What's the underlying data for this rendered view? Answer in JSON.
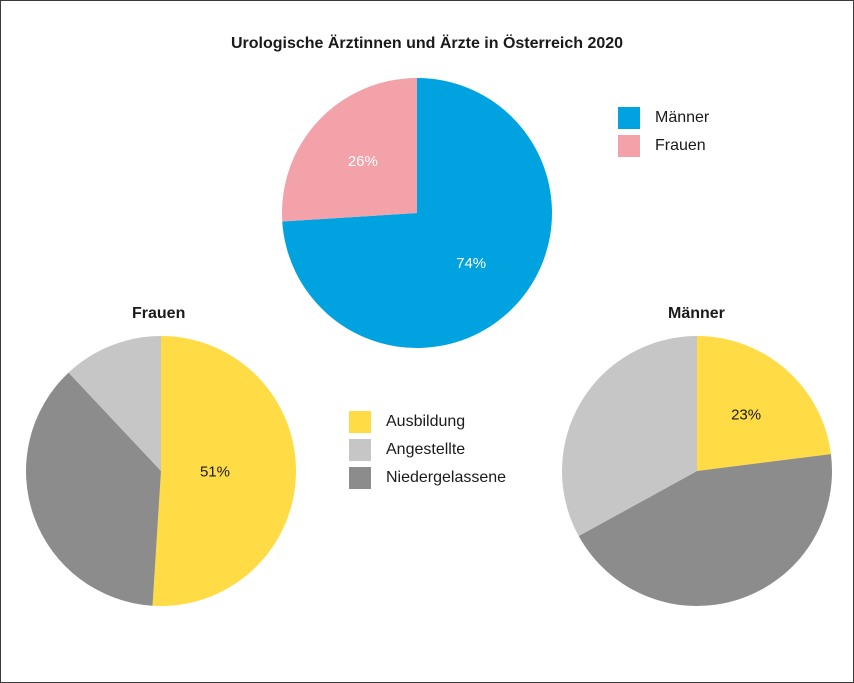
{
  "colors": {
    "maenner": "#00a3e0",
    "frauen": "#f2a2a8",
    "ausbildung": "#ffdc45",
    "angestellte": "#c6c6c6",
    "niedergelassene": "#8c8c8c",
    "label_light": "#ffffff",
    "label_dark": "#1a1a1a"
  },
  "legend_gender": [
    {
      "label": "Männer",
      "color": "#00a3e0"
    },
    {
      "label": "Frauen",
      "color": "#f2a2a8"
    }
  ],
  "legend_type": [
    {
      "label": "Ausbildung",
      "color": "#ffdc45"
    },
    {
      "label": "Angestellte",
      "color": "#c6c6c6"
    },
    {
      "label": "Niedergelassene",
      "color": "#8c8c8c"
    }
  ],
  "chart_data": [
    {
      "type": "pie",
      "title": "Urologische Ärztinnen und Ärzte in Österreich 2020",
      "categories": [
        "Männer",
        "Frauen"
      ],
      "values": [
        74,
        26
      ],
      "data_labels": [
        "74%",
        "26%"
      ],
      "legend": "right"
    },
    {
      "type": "pie",
      "title": "Frauen",
      "categories": [
        "Ausbildung",
        "Niedergelassene",
        "Angestellte"
      ],
      "values": [
        51,
        37,
        12
      ],
      "data_labels": [
        "51%",
        "",
        ""
      ],
      "legend": "right"
    },
    {
      "type": "pie",
      "title": "Männer",
      "categories": [
        "Ausbildung",
        "Niedergelassene",
        "Angestellte"
      ],
      "values": [
        23,
        44,
        33
      ],
      "data_labels": [
        "23%",
        "",
        ""
      ],
      "legend": "left"
    }
  ]
}
